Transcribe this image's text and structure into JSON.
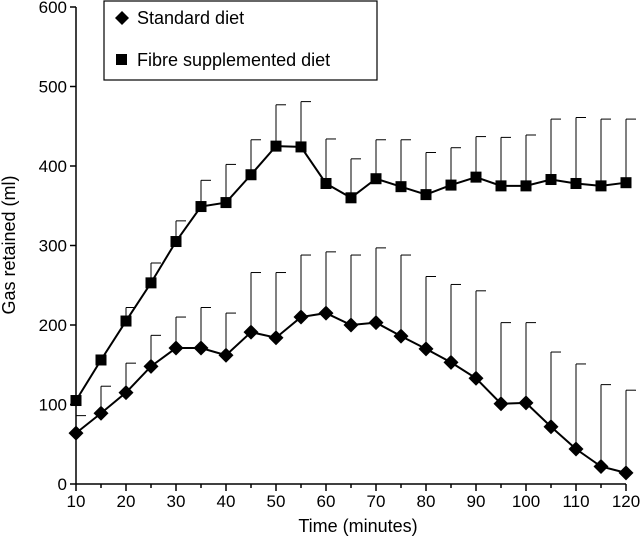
{
  "chart_data": {
    "type": "line",
    "title": "",
    "xlabel": "Time (minutes)",
    "ylabel": "Gas retained (ml)",
    "xlim": [
      10,
      120
    ],
    "ylim": [
      0,
      600
    ],
    "x_ticks": [
      10,
      20,
      30,
      40,
      50,
      60,
      70,
      80,
      90,
      100,
      110,
      120
    ],
    "y_ticks": [
      0,
      100,
      200,
      300,
      400,
      500,
      600
    ],
    "grid": false,
    "legend_position": "top-left",
    "x": [
      10,
      15,
      20,
      25,
      30,
      35,
      40,
      45,
      50,
      55,
      60,
      65,
      70,
      75,
      80,
      85,
      90,
      95,
      100,
      105,
      110,
      115,
      120
    ],
    "series": [
      {
        "name": "Standard diet",
        "marker": "diamond",
        "values": [
          64,
          89,
          115,
          148,
          171,
          171,
          162,
          191,
          184,
          210,
          215,
          200,
          203,
          186,
          170,
          153,
          133,
          101,
          102,
          72,
          44,
          22,
          14
        ],
        "error_upper": [
          86,
          123,
          152,
          187,
          210,
          222,
          215,
          266,
          266,
          288,
          292,
          288,
          297,
          288,
          261,
          251,
          243,
          203,
          203,
          166,
          151,
          125,
          118
        ]
      },
      {
        "name": "Fibre supplemented diet",
        "marker": "square",
        "values": [
          105,
          156,
          205,
          253,
          305,
          349,
          354,
          389,
          425,
          424,
          378,
          360,
          384,
          374,
          364,
          376,
          386,
          375,
          375,
          383,
          378,
          375,
          379
        ],
        "error_upper": [
          null,
          null,
          222,
          278,
          331,
          382,
          402,
          433,
          477,
          481,
          434,
          409,
          433,
          433,
          417,
          423,
          437,
          436,
          439,
          459,
          461,
          459,
          459
        ]
      }
    ]
  }
}
